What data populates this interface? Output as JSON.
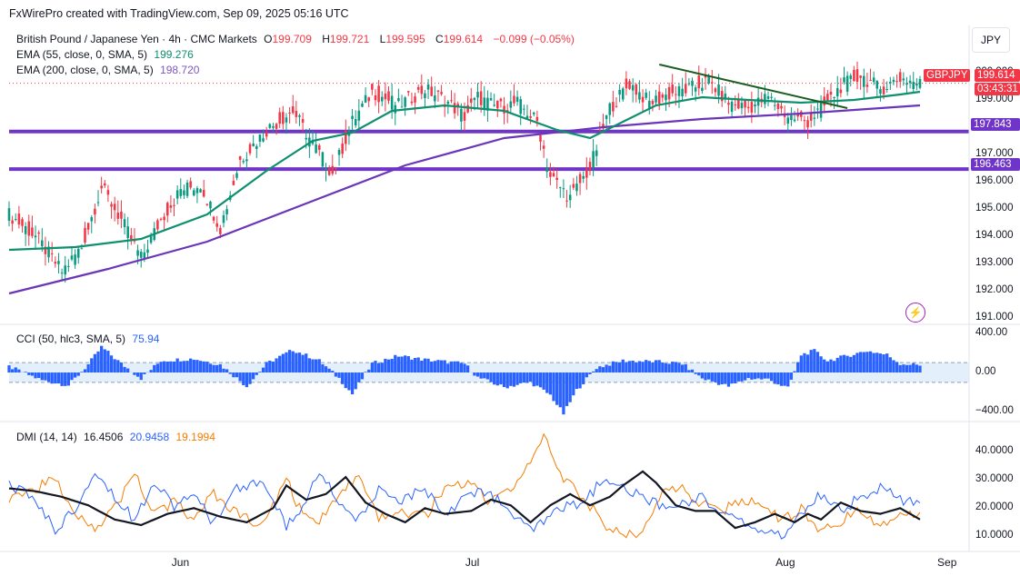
{
  "header": {
    "credit": "FxWirePro created with TradingView.com, Sep 09, 2025 05:16 UTC",
    "currency_button": "JPY"
  },
  "main_legend": {
    "symbol": "British Pound / Japanese Yen · 4h · CMC Markets",
    "open_label": "O",
    "open": "199.709",
    "high_label": "H",
    "high": "199.721",
    "low_label": "L",
    "low": "199.595",
    "close_label": "C",
    "close": "199.614",
    "change": "−0.099 (−0.05%)",
    "ema55_label": "EMA (55, close, 0, SMA, 5)",
    "ema55_value": "199.276",
    "ema200_label": "EMA (200, close, 0, SMA, 5)",
    "ema200_value": "198.720"
  },
  "price_tags": {
    "symbol": "GBPJPY",
    "last": "199.614",
    "countdown": "03:43:31",
    "support1": "197.843",
    "support2": "196.463"
  },
  "cci_legend": {
    "label": "CCI (50, hlc3, SMA, 5)",
    "value": "75.94"
  },
  "dmi_legend": {
    "label": "DMI (14, 14)",
    "adx": "16.4506",
    "plus_di": "20.9458",
    "minus_di": "19.1994"
  },
  "colors": {
    "up": "#089981",
    "down": "#f23645",
    "ema55": "#0e8f6e",
    "ema200": "#6a35b8",
    "support": "#6f35c8",
    "trendline": "#1b5e20",
    "cci": "#2962ff",
    "adx": "#131722",
    "plus_di": "#2962ff",
    "minus_di": "#f57c00"
  },
  "chart_data": [
    {
      "type": "candlestick",
      "title": "British Pound / Japanese Yen · 4h · CMC Markets",
      "ylim": [
        190.8,
        200.8
      ],
      "y_ticks": [
        "200.000",
        "199.000",
        "198.000",
        "197.000",
        "196.000",
        "195.000",
        "194.000",
        "193.000",
        "192.000",
        "191.000"
      ],
      "x_ticks": [
        "Jun",
        "Jul",
        "Aug",
        "Sep"
      ],
      "close_path": [
        [
          0,
          194.8
        ],
        [
          8,
          194.0
        ],
        [
          16,
          192.7
        ],
        [
          22,
          193.6
        ],
        [
          28,
          195.8
        ],
        [
          34,
          194.6
        ],
        [
          40,
          193.2
        ],
        [
          46,
          194.6
        ],
        [
          52,
          195.7
        ],
        [
          58,
          195.9
        ],
        [
          64,
          194.3
        ],
        [
          70,
          196.8
        ],
        [
          78,
          197.9
        ],
        [
          86,
          198.6
        ],
        [
          92,
          197.4
        ],
        [
          98,
          196.3
        ],
        [
          104,
          198.2
        ],
        [
          110,
          199.3
        ],
        [
          118,
          198.8
        ],
        [
          126,
          199.4
        ],
        [
          132,
          199.0
        ],
        [
          138,
          198.4
        ],
        [
          142,
          199.1
        ],
        [
          148,
          198.7
        ],
        [
          154,
          198.9
        ],
        [
          160,
          198.2
        ],
        [
          164,
          196.2
        ],
        [
          170,
          195.4
        ],
        [
          176,
          196.5
        ],
        [
          182,
          198.7
        ],
        [
          188,
          199.6
        ],
        [
          194,
          198.9
        ],
        [
          200,
          199.2
        ],
        [
          206,
          199.4
        ],
        [
          212,
          199.7
        ],
        [
          218,
          198.9
        ],
        [
          224,
          198.7
        ],
        [
          230,
          199.1
        ],
        [
          236,
          198.4
        ],
        [
          242,
          198.2
        ],
        [
          248,
          198.9
        ],
        [
          252,
          199.5
        ],
        [
          258,
          199.9
        ],
        [
          264,
          199.4
        ],
        [
          270,
          199.8
        ],
        [
          276,
          199.6
        ]
      ],
      "ema55_path": [
        [
          0,
          193.5
        ],
        [
          20,
          193.6
        ],
        [
          40,
          193.9
        ],
        [
          60,
          194.8
        ],
        [
          78,
          196.4
        ],
        [
          92,
          197.5
        ],
        [
          104,
          197.8
        ],
        [
          116,
          198.6
        ],
        [
          132,
          198.8
        ],
        [
          150,
          198.6
        ],
        [
          166,
          197.9
        ],
        [
          176,
          197.6
        ],
        [
          186,
          198.2
        ],
        [
          196,
          198.8
        ],
        [
          210,
          199.1
        ],
        [
          224,
          199.0
        ],
        [
          240,
          198.9
        ],
        [
          256,
          199.0
        ],
        [
          270,
          199.2
        ],
        [
          276,
          199.3
        ]
      ],
      "ema200_path": [
        [
          0,
          191.9
        ],
        [
          30,
          192.8
        ],
        [
          60,
          193.8
        ],
        [
          90,
          195.2
        ],
        [
          120,
          196.6
        ],
        [
          150,
          197.6
        ],
        [
          180,
          198.0
        ],
        [
          210,
          198.3
        ],
        [
          240,
          198.5
        ],
        [
          276,
          198.8
        ]
      ],
      "support_levels": [
        197.843,
        196.463
      ],
      "trendline": [
        [
          197,
          200.3
        ],
        [
          254,
          198.7
        ]
      ],
      "last_price": 199.614
    },
    {
      "type": "bar",
      "title": "CCI (50, hlc3, SMA, 5)",
      "ylim": [
        -480,
        480
      ],
      "y_ticks": [
        "400.00",
        "0.00",
        "−400.00"
      ],
      "bands": [
        100,
        -100
      ],
      "path": [
        [
          0,
          60
        ],
        [
          10,
          -80
        ],
        [
          18,
          -130
        ],
        [
          24,
          80
        ],
        [
          28,
          260
        ],
        [
          34,
          90
        ],
        [
          40,
          -60
        ],
        [
          46,
          120
        ],
        [
          56,
          140
        ],
        [
          64,
          80
        ],
        [
          72,
          -140
        ],
        [
          78,
          90
        ],
        [
          86,
          230
        ],
        [
          94,
          120
        ],
        [
          100,
          -60
        ],
        [
          104,
          -220
        ],
        [
          110,
          90
        ],
        [
          118,
          170
        ],
        [
          126,
          130
        ],
        [
          132,
          110
        ],
        [
          138,
          90
        ],
        [
          142,
          -50
        ],
        [
          150,
          -150
        ],
        [
          158,
          -100
        ],
        [
          164,
          -230
        ],
        [
          168,
          -420
        ],
        [
          172,
          -180
        ],
        [
          178,
          50
        ],
        [
          186,
          120
        ],
        [
          196,
          110
        ],
        [
          204,
          90
        ],
        [
          210,
          -60
        ],
        [
          218,
          -140
        ],
        [
          224,
          -60
        ],
        [
          230,
          -70
        ],
        [
          236,
          -160
        ],
        [
          240,
          180
        ],
        [
          244,
          220
        ],
        [
          248,
          120
        ],
        [
          254,
          170
        ],
        [
          260,
          220
        ],
        [
          266,
          180
        ],
        [
          270,
          90
        ],
        [
          276,
          76
        ]
      ]
    },
    {
      "type": "line",
      "title": "DMI (14, 14)",
      "ylim": [
        5,
        50
      ],
      "y_ticks": [
        "40.0000",
        "30.0000",
        "20.0000",
        "10.0000"
      ],
      "series": [
        {
          "name": "",
          "color": "#131722",
          "values": [
            [
              0,
              27
            ],
            [
              8,
              26
            ],
            [
              16,
              24
            ],
            [
              24,
              21
            ],
            [
              32,
              16
            ],
            [
              40,
              14
            ],
            [
              48,
              18
            ],
            [
              56,
              20
            ],
            [
              64,
              17
            ],
            [
              72,
              15
            ],
            [
              80,
              20
            ],
            [
              84,
              28
            ],
            [
              90,
              23
            ],
            [
              96,
              25
            ],
            [
              102,
              31
            ],
            [
              108,
              22
            ],
            [
              114,
              18
            ],
            [
              120,
              15
            ],
            [
              126,
              20
            ],
            [
              132,
              18
            ],
            [
              140,
              19
            ],
            [
              146,
              23
            ],
            [
              152,
              21
            ],
            [
              158,
              15
            ],
            [
              164,
              21
            ],
            [
              170,
              25
            ],
            [
              176,
              21
            ],
            [
              182,
              24
            ],
            [
              186,
              28
            ],
            [
              192,
              33
            ],
            [
              196,
              29
            ],
            [
              202,
              21
            ],
            [
              208,
              19
            ],
            [
              214,
              19
            ],
            [
              220,
              13
            ],
            [
              226,
              15
            ],
            [
              232,
              18
            ],
            [
              238,
              15
            ],
            [
              242,
              18
            ],
            [
              246,
              16
            ],
            [
              252,
              22
            ],
            [
              258,
              19
            ],
            [
              264,
              18
            ],
            [
              270,
              20
            ],
            [
              276,
              16
            ]
          ]
        },
        {
          "name": "",
          "color": "#2962ff",
          "values": [
            [
              0,
              28
            ],
            [
              8,
              23
            ],
            [
              14,
              12
            ],
            [
              20,
              20
            ],
            [
              26,
              34
            ],
            [
              32,
              24
            ],
            [
              38,
              16
            ],
            [
              44,
              30
            ],
            [
              50,
              21
            ],
            [
              56,
              24
            ],
            [
              62,
              15
            ],
            [
              68,
              26
            ],
            [
              76,
              30
            ],
            [
              84,
              14
            ],
            [
              88,
              18
            ],
            [
              94,
              33
            ],
            [
              100,
              22
            ],
            [
              106,
              16
            ],
            [
              112,
              26
            ],
            [
              118,
              22
            ],
            [
              126,
              27
            ],
            [
              132,
              18
            ],
            [
              140,
              26
            ],
            [
              146,
              25
            ],
            [
              152,
              18
            ],
            [
              158,
              12
            ],
            [
              162,
              15
            ],
            [
              168,
              20
            ],
            [
              174,
              22
            ],
            [
              180,
              30
            ],
            [
              186,
              27
            ],
            [
              192,
              24
            ],
            [
              198,
              20
            ],
            [
              204,
              22
            ],
            [
              210,
              24
            ],
            [
              216,
              18
            ],
            [
              222,
              15
            ],
            [
              228,
              12
            ],
            [
              234,
              10
            ],
            [
              240,
              18
            ],
            [
              246,
              25
            ],
            [
              252,
              19
            ],
            [
              258,
              24
            ],
            [
              264,
              27
            ],
            [
              270,
              23
            ],
            [
              276,
              21
            ]
          ]
        },
        {
          "name": "",
          "color": "#f57c00",
          "values": [
            [
              0,
              24
            ],
            [
              8,
              27
            ],
            [
              14,
              30
            ],
            [
              20,
              19
            ],
            [
              26,
              13
            ],
            [
              32,
              20
            ],
            [
              38,
              32
            ],
            [
              44,
              18
            ],
            [
              50,
              22
            ],
            [
              56,
              16
            ],
            [
              62,
              25
            ],
            [
              68,
              19
            ],
            [
              76,
              13
            ],
            [
              84,
              30
            ],
            [
              88,
              20
            ],
            [
              94,
              15
            ],
            [
              100,
              26
            ],
            [
              106,
              30
            ],
            [
              112,
              16
            ],
            [
              118,
              19
            ],
            [
              126,
              17
            ],
            [
              132,
              27
            ],
            [
              140,
              29
            ],
            [
              146,
              22
            ],
            [
              152,
              27
            ],
            [
              158,
              36
            ],
            [
              162,
              45
            ],
            [
              168,
              30
            ],
            [
              174,
              24
            ],
            [
              180,
              15
            ],
            [
              186,
              10
            ],
            [
              192,
              12
            ],
            [
              198,
              25
            ],
            [
              204,
              27
            ],
            [
              210,
              21
            ],
            [
              216,
              19
            ],
            [
              222,
              23
            ],
            [
              228,
              22
            ],
            [
              234,
              15
            ],
            [
              240,
              20
            ],
            [
              246,
              12
            ],
            [
              252,
              15
            ],
            [
              258,
              20
            ],
            [
              264,
              14
            ],
            [
              270,
              18
            ],
            [
              276,
              19
            ]
          ]
        }
      ]
    }
  ]
}
